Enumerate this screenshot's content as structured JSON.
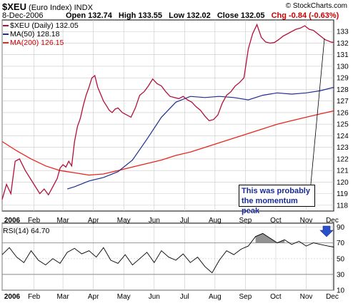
{
  "header": {
    "symbol": "$XEU",
    "name": "(Euro Index)",
    "exchange": "INDX",
    "date": "8-Dec-2006",
    "open": "Open 132.74",
    "high": "High 133.55",
    "low": "Low 132.02",
    "close": "Close 132.05",
    "chg": "Chg -0.84 (-0.63%)",
    "copyright": "© StockCharts.com"
  },
  "legend": {
    "series_main": "$XEU (Daily) 132.05",
    "ma50": "MA(50) 128.18",
    "ma200": "MA(200) 126.15",
    "rsi": "RSI(14) 64.70"
  },
  "annotation": {
    "line1": "This was probably",
    "line2": "the momentum peak"
  },
  "colors": {
    "price": "#b0103a",
    "ma50": "#1f2d8f",
    "ma200": "#e8241c",
    "annotation": "#1a2a9a",
    "grid": "#c8c8c8"
  },
  "chart_data": {
    "type": "line",
    "price_ylim": [
      117.5,
      134
    ],
    "price_yticks": [
      118,
      119,
      120,
      121,
      122,
      123,
      124,
      125,
      126,
      127,
      128,
      129,
      130,
      131,
      132,
      133
    ],
    "rsi_ylim": [
      10,
      95
    ],
    "rsi_yticks": [
      10,
      30,
      50,
      70,
      90
    ],
    "x_labels": [
      "2006",
      "Feb",
      "Mar",
      "Apr",
      "May",
      "Jun",
      "Jul",
      "Aug",
      "Sep",
      "Oct",
      "Nov",
      "Dec"
    ],
    "series": [
      {
        "name": "$XEU (Daily) 132.05",
        "x": [
          0,
          3,
          6,
          9,
          12,
          16,
          20,
          23,
          26,
          29,
          32,
          35,
          38,
          40,
          42,
          44,
          46,
          48,
          50,
          52,
          54,
          56,
          58,
          60,
          62,
          64,
          66,
          68,
          70,
          72,
          74,
          76,
          78,
          80,
          83,
          86,
          89,
          92,
          95,
          98,
          101,
          104,
          107,
          110,
          113,
          116,
          119,
          122,
          125,
          128,
          131,
          134,
          137,
          140,
          143,
          146,
          149,
          152,
          155,
          158,
          161,
          164,
          167,
          170,
          173,
          176,
          179,
          182,
          185,
          188,
          191,
          194,
          197,
          200,
          203,
          206,
          209,
          212,
          215,
          218,
          221,
          223,
          225,
          227,
          229
        ],
        "values": [
          118.5,
          119.8,
          119.0,
          121.8,
          122.0,
          121.0,
          120.2,
          119.6,
          119.0,
          119.4,
          118.9,
          119.6,
          120.3,
          121.2,
          121.5,
          121.3,
          121.8,
          121.4,
          123.5,
          124.8,
          125.5,
          126.6,
          127.5,
          128.2,
          129.0,
          129.2,
          128.2,
          127.6,
          127.0,
          126.6,
          126.2,
          126.0,
          126.3,
          126.4,
          126.0,
          125.8,
          125.6,
          126.4,
          127.5,
          127.8,
          128.3,
          128.9,
          128.5,
          128.3,
          127.8,
          127.4,
          127.3,
          127.2,
          127.4,
          127.1,
          126.9,
          126.5,
          126.2,
          125.7,
          125.3,
          125.4,
          125.8,
          126.8,
          127.5,
          127.8,
          128.3,
          128.6,
          129.0,
          131.5,
          132.8,
          133.6,
          132.5,
          132.1,
          132.0,
          132.05,
          132.3,
          132.6,
          132.8,
          133.0,
          133.2,
          133.3,
          133.5,
          133.2,
          133.1,
          132.8,
          132.5,
          132.3,
          132.2,
          132.1,
          132.05
        ]
      },
      {
        "name": "MA(50) 128.18",
        "x": [
          45,
          50,
          60,
          70,
          80,
          90,
          100,
          110,
          120,
          130,
          140,
          150,
          160,
          170,
          180,
          190,
          200,
          210,
          220,
          229
        ],
        "values": [
          119.4,
          119.6,
          120.1,
          120.4,
          120.9,
          121.9,
          123.7,
          125.6,
          126.9,
          127.4,
          127.3,
          127.4,
          127.3,
          127.1,
          127.5,
          127.7,
          127.6,
          127.7,
          127.9,
          128.18
        ]
      },
      {
        "name": "MA(200) 126.15",
        "x": [
          0,
          10,
          20,
          30,
          40,
          50,
          60,
          70,
          80,
          90,
          100,
          110,
          120,
          130,
          140,
          150,
          160,
          170,
          180,
          190,
          200,
          210,
          220,
          229
        ],
        "values": [
          123.5,
          122.7,
          122.0,
          121.4,
          121.0,
          120.8,
          120.6,
          120.7,
          121.0,
          121.3,
          121.6,
          121.9,
          122.3,
          122.6,
          123.0,
          123.4,
          123.8,
          124.2,
          124.6,
          125.0,
          125.3,
          125.6,
          125.9,
          126.15
        ]
      },
      {
        "name": "RSI(14) 64.70",
        "x": [
          0,
          5,
          10,
          15,
          20,
          25,
          30,
          35,
          40,
          45,
          50,
          55,
          60,
          65,
          70,
          75,
          80,
          85,
          90,
          95,
          100,
          105,
          110,
          115,
          120,
          125,
          130,
          135,
          140,
          145,
          150,
          155,
          160,
          165,
          170,
          175,
          180,
          185,
          190,
          195,
          200,
          205,
          210,
          215,
          220,
          225,
          229
        ],
        "values": [
          55,
          64,
          52,
          45,
          60,
          48,
          42,
          50,
          44,
          58,
          63,
          56,
          60,
          52,
          64,
          48,
          44,
          55,
          42,
          50,
          58,
          45,
          60,
          52,
          48,
          56,
          45,
          52,
          40,
          32,
          48,
          60,
          55,
          62,
          66,
          78,
          82,
          76,
          70,
          74,
          68,
          72,
          66,
          70,
          68,
          66,
          64.7
        ]
      }
    ]
  }
}
